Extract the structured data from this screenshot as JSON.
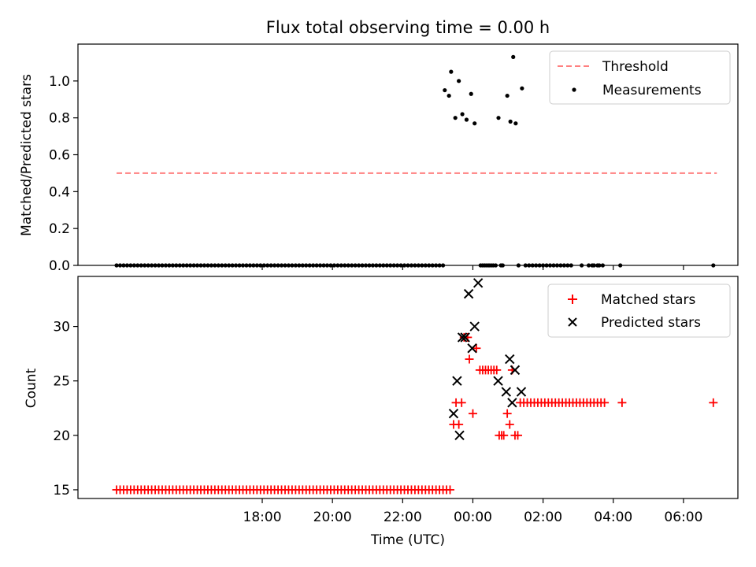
{
  "chart_data": [
    {
      "type": "scatter",
      "title": "Flux total observing time = 0.00 h",
      "ylabel": "Matched/Predicted stars",
      "xlabel": "",
      "x_unit": "hours (UTC, relative to 00:00)",
      "xlim": [
        -11.25,
        7.55
      ],
      "ylim": [
        0,
        1.2
      ],
      "yticks": [
        0.0,
        0.2,
        0.4,
        0.6,
        0.8,
        1.0
      ],
      "ytick_labels": [
        "0.0",
        "0.2",
        "0.4",
        "0.6",
        "0.8",
        "1.0"
      ],
      "xticks": [
        -6,
        -4,
        -2,
        0,
        2,
        4,
        6
      ],
      "legend": {
        "position": "top-right",
        "entries": [
          "Threshold",
          "Measurements"
        ]
      },
      "threshold": {
        "name": "Threshold",
        "y": 0.5,
        "x_range": [
          -10.15,
          6.95
        ],
        "color": "#ff8080",
        "style": "dashed"
      },
      "series": [
        {
          "name": "Measurements",
          "color": "#000000",
          "marker": "dot",
          "zero_x_start": -10.15,
          "zero_x_end": -0.9,
          "zero_step": 0.1,
          "extra_zero_x": [
            0.22,
            0.28,
            0.34,
            0.4,
            0.46,
            0.52,
            0.58,
            0.65,
            0.8,
            0.85,
            1.3,
            1.5,
            1.6,
            1.7,
            1.8,
            1.9,
            2.0,
            2.1,
            2.2,
            2.3,
            2.4,
            2.5,
            2.6,
            2.7,
            2.8,
            3.1,
            3.3,
            3.4,
            3.45,
            3.55,
            3.6,
            3.7,
            4.2,
            6.85
          ],
          "points": [
            {
              "x": -0.8,
              "y": 0.95
            },
            {
              "x": -0.68,
              "y": 0.92
            },
            {
              "x": -0.62,
              "y": 1.05
            },
            {
              "x": -0.5,
              "y": 0.8
            },
            {
              "x": -0.4,
              "y": 1.0
            },
            {
              "x": -0.3,
              "y": 0.82
            },
            {
              "x": -0.18,
              "y": 0.79
            },
            {
              "x": -0.05,
              "y": 0.93
            },
            {
              "x": 0.05,
              "y": 0.77
            },
            {
              "x": 0.73,
              "y": 0.8
            },
            {
              "x": 0.98,
              "y": 0.92
            },
            {
              "x": 1.07,
              "y": 0.78
            },
            {
              "x": 1.15,
              "y": 1.13
            },
            {
              "x": 1.22,
              "y": 0.77
            },
            {
              "x": 1.4,
              "y": 0.96
            }
          ]
        }
      ]
    },
    {
      "type": "scatter",
      "title": "",
      "ylabel": "Count",
      "xlabel": "Time (UTC)",
      "x_unit": "hours (UTC, relative to 00:00)",
      "xlim": [
        -11.25,
        7.55
      ],
      "ylim": [
        14.2,
        34.6
      ],
      "yticks": [
        15,
        20,
        25,
        30
      ],
      "ytick_labels": [
        "15",
        "20",
        "25",
        "30"
      ],
      "xticks": [
        -6,
        -4,
        -2,
        0,
        2,
        4,
        6
      ],
      "xtick_labels": [
        "18:00",
        "20:00",
        "22:00",
        "00:00",
        "02:00",
        "04:00",
        "06:00"
      ],
      "legend": {
        "position": "top-right",
        "entries": [
          "Matched stars",
          "Predicted stars"
        ]
      },
      "series": [
        {
          "name": "Matched stars",
          "color": "#ff0000",
          "marker": "plus",
          "run_15_x_start": -10.15,
          "run_15_x_end": -0.7,
          "run_15_step": 0.1,
          "run_15_y": 15,
          "points": [
            {
              "x": -0.55,
              "y": 21
            },
            {
              "x": -0.48,
              "y": 23
            },
            {
              "x": -0.4,
              "y": 21
            },
            {
              "x": -0.32,
              "y": 23
            },
            {
              "x": -0.25,
              "y": 29
            },
            {
              "x": -0.15,
              "y": 29
            },
            {
              "x": -0.1,
              "y": 27
            },
            {
              "x": 0.0,
              "y": 22
            },
            {
              "x": 0.1,
              "y": 28
            },
            {
              "x": 0.2,
              "y": 26
            },
            {
              "x": 0.28,
              "y": 26
            },
            {
              "x": 0.36,
              "y": 26
            },
            {
              "x": 0.44,
              "y": 26
            },
            {
              "x": 0.52,
              "y": 26
            },
            {
              "x": 0.6,
              "y": 26
            },
            {
              "x": 0.68,
              "y": 26
            },
            {
              "x": 0.75,
              "y": 20
            },
            {
              "x": 0.82,
              "y": 20
            },
            {
              "x": 0.88,
              "y": 20
            },
            {
              "x": 0.98,
              "y": 22
            },
            {
              "x": 1.05,
              "y": 21
            },
            {
              "x": 1.12,
              "y": 26
            },
            {
              "x": 1.2,
              "y": 20
            },
            {
              "x": 1.28,
              "y": 20
            },
            {
              "x": 4.25,
              "y": 23
            },
            {
              "x": 6.85,
              "y": 23
            }
          ],
          "run_23_x_start": 1.35,
          "run_23_x_end": 3.75,
          "run_23_step": 0.1,
          "run_23_y": 23
        },
        {
          "name": "Predicted stars",
          "color": "#000000",
          "marker": "x",
          "points": [
            {
              "x": -0.55,
              "y": 22
            },
            {
              "x": -0.45,
              "y": 25
            },
            {
              "x": -0.38,
              "y": 20
            },
            {
              "x": -0.3,
              "y": 29
            },
            {
              "x": -0.22,
              "y": 29
            },
            {
              "x": -0.12,
              "y": 33
            },
            {
              "x": -0.02,
              "y": 28
            },
            {
              "x": 0.05,
              "y": 30
            },
            {
              "x": 0.15,
              "y": 34
            },
            {
              "x": 0.72,
              "y": 25
            },
            {
              "x": 0.95,
              "y": 24
            },
            {
              "x": 1.05,
              "y": 27
            },
            {
              "x": 1.12,
              "y": 23
            },
            {
              "x": 1.2,
              "y": 26
            },
            {
              "x": 1.38,
              "y": 24
            }
          ]
        }
      ]
    }
  ]
}
